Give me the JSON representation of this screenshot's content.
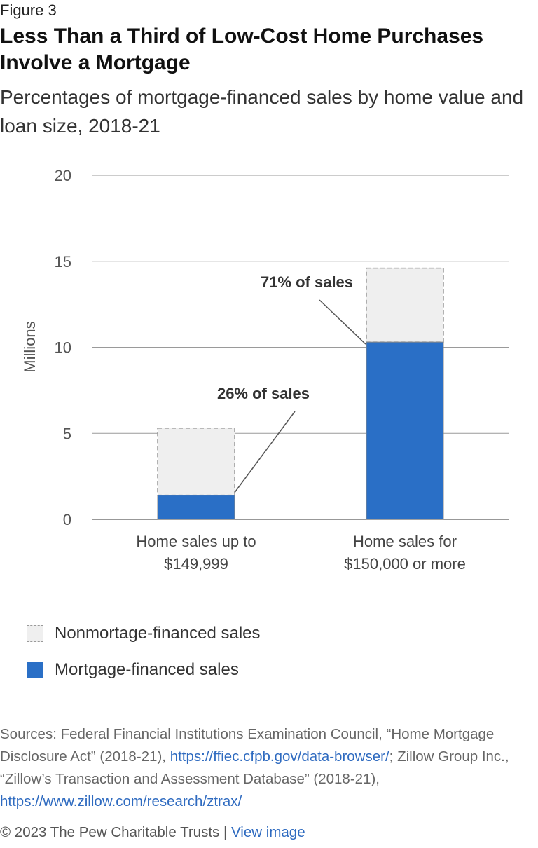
{
  "figure_label": "Figure 3",
  "title": "Less Than a Third of Low-Cost Home Purchases Involve a Mortgage",
  "subtitle": "Percentages of mortgage-financed sales by home value and loan size, 2018-21",
  "colors": {
    "mortgage": "#2a6fc6",
    "nonmortgage": "#efefef",
    "nonmortgage_border": "#999999"
  },
  "chart_data": {
    "type": "bar",
    "stacked": true,
    "categories": [
      "Home sales up to\n$149,999",
      "Home sales for\n$150,000 or more"
    ],
    "series": [
      {
        "name": "Mortgage-financed sales",
        "values": [
          1.4,
          10.3
        ]
      },
      {
        "name": "Nonmortage-financed sales",
        "values": [
          3.9,
          4.3
        ]
      }
    ],
    "ylabel": "Millions",
    "ylim": [
      0,
      20
    ],
    "yticks": [
      0,
      5,
      10,
      15,
      20
    ],
    "grid": true,
    "annotations": [
      {
        "text": "26% of sales",
        "category_index": 0
      },
      {
        "text": "71% of sales",
        "category_index": 1
      }
    ],
    "legend_position": "bottom-left"
  },
  "legend": {
    "nonmortgage": "Nonmortage-financed sales",
    "mortgage": "Mortgage-financed sales"
  },
  "sources": {
    "text1": "Sources: Federal Financial Institutions Examination Council, “Home Mortgage Disclosure Act” (2018-21), ",
    "link1": "https://ffiec.cfpb.gov/data-browser/",
    "text2": "; Zillow Group Inc., “Zillow’s Transaction and Assessment Database” (2018-21), ",
    "link2": "https://www.zillow.com/research/ztrax/"
  },
  "footer": {
    "copyright": "© 2023 The Pew Charitable Trusts",
    "separator": " | ",
    "view_image": "View image"
  }
}
